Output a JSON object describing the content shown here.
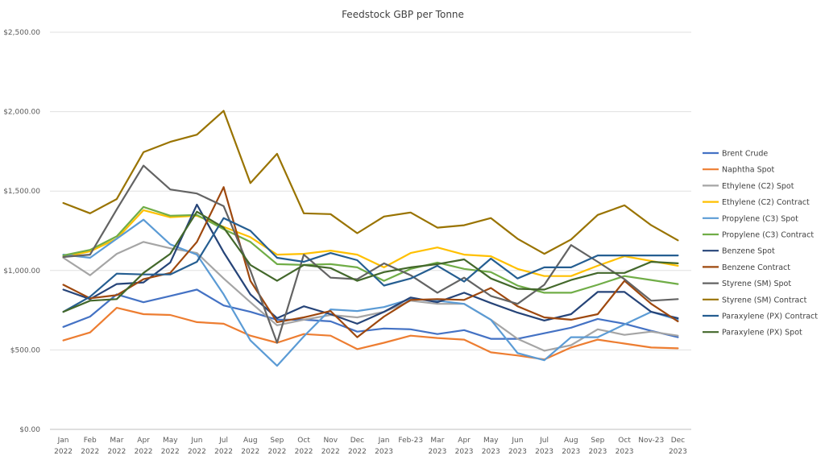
{
  "chart_data": {
    "type": "line",
    "title": "Feedstock GBP per Tonne",
    "xlabel": "",
    "ylabel": "",
    "ylim": [
      0,
      2500
    ],
    "y_ticks": [
      "$0.00",
      "$500.00",
      "$1,000.00",
      "$1,500.00",
      "$2,000.00",
      "$2,500.00"
    ],
    "grid": true,
    "legend_position": "right",
    "x_labels": [
      [
        "Jan",
        "2022"
      ],
      [
        "Feb",
        "2022"
      ],
      [
        "Mar",
        "2022"
      ],
      [
        "Apr",
        "2022"
      ],
      [
        "May",
        "2022"
      ],
      [
        "Jun",
        "2022"
      ],
      [
        "Jul",
        "2022"
      ],
      [
        "Aug",
        "2022"
      ],
      [
        "Sep",
        "2022"
      ],
      [
        "Oct",
        "2022"
      ],
      [
        "Nov",
        "2022"
      ],
      [
        "Dec",
        "2022"
      ],
      [
        "Jan",
        "2023"
      ],
      [
        "Feb-23",
        ""
      ],
      [
        "Mar",
        "2023"
      ],
      [
        "Apr",
        "2023"
      ],
      [
        "May",
        "2023"
      ],
      [
        "Jun",
        "2023"
      ],
      [
        "Jul",
        "2023"
      ],
      [
        "Aug",
        "2023"
      ],
      [
        "Sep",
        "2023"
      ],
      [
        "Oct",
        "2023"
      ],
      [
        "Nov-23",
        ""
      ],
      [
        "Dec",
        "2023"
      ]
    ],
    "series": [
      {
        "name": "Brent Crude",
        "color": "#4472c4",
        "values": [
          645,
          710,
          850,
          800,
          840,
          880,
          780,
          740,
          690,
          690,
          680,
          615,
          635,
          630,
          600,
          625,
          570,
          570,
          605,
          640,
          695,
          665,
          620,
          580
        ]
      },
      {
        "name": "Naphtha Spot",
        "color": "#ed7d31",
        "values": [
          560,
          610,
          765,
          725,
          720,
          675,
          665,
          590,
          545,
          600,
          590,
          505,
          545,
          590,
          575,
          565,
          485,
          465,
          440,
          515,
          565,
          540,
          515,
          510
        ]
      },
      {
        "name": "Ethylene (C2) Spot",
        "color": "#a5a5a5",
        "values": [
          1080,
          970,
          1105,
          1180,
          1140,
          1110,
          950,
          800,
          655,
          690,
          720,
          705,
          740,
          810,
          790,
          790,
          690,
          570,
          495,
          530,
          630,
          595,
          615,
          590
        ]
      },
      {
        "name": "Ethylene (C2) Contract",
        "color": "#ffc000",
        "values": [
          1085,
          1120,
          1200,
          1380,
          1335,
          1345,
          1275,
          1210,
          1100,
          1105,
          1125,
          1100,
          1020,
          1110,
          1145,
          1100,
          1090,
          1010,
          965,
          965,
          1030,
          1090,
          1060,
          1030
        ]
      },
      {
        "name": "Propylene (C3) Spot",
        "color": "#5b9bd5",
        "values": [
          1100,
          1080,
          1200,
          1320,
          1165,
          1100,
          850,
          560,
          400,
          585,
          755,
          745,
          770,
          820,
          810,
          790,
          690,
          480,
          435,
          580,
          580,
          660,
          740,
          690
        ]
      },
      {
        "name": "Propylene (C3) Contract",
        "color": "#70ad47",
        "values": [
          1095,
          1130,
          1215,
          1400,
          1345,
          1350,
          1260,
          1180,
          1040,
          1035,
          1040,
          1020,
          935,
          1010,
          1050,
          1010,
          990,
          905,
          860,
          860,
          910,
          965,
          940,
          915
        ]
      },
      {
        "name": "Benzene Spot",
        "color": "#264478",
        "values": [
          880,
          820,
          915,
          925,
          1050,
          1415,
          1115,
          850,
          700,
          775,
          725,
          665,
          740,
          830,
          800,
          860,
          795,
          735,
          685,
          725,
          865,
          865,
          740,
          700
        ]
      },
      {
        "name": "Benzene Contract",
        "color": "#9e480e",
        "values": [
          910,
          825,
          845,
          945,
          985,
          1180,
          1525,
          935,
          675,
          705,
          745,
          580,
          710,
          815,
          820,
          815,
          890,
          775,
          705,
          690,
          725,
          935,
          790,
          680
        ]
      },
      {
        "name": "Styrene (SM) Spot",
        "color": "#636363",
        "values": [
          1085,
          1100,
          1385,
          1660,
          1510,
          1485,
          1405,
          1000,
          545,
          1100,
          955,
          945,
          1045,
          970,
          860,
          955,
          840,
          790,
          910,
          1160,
          1055,
          945,
          810,
          820
        ]
      },
      {
        "name": "Styrene (SM) Contract",
        "color": "#997300",
        "values": [
          1425,
          1360,
          1450,
          1745,
          1810,
          1855,
          2005,
          1550,
          1735,
          1360,
          1355,
          1235,
          1340,
          1365,
          1270,
          1285,
          1330,
          1200,
          1105,
          1195,
          1350,
          1410,
          1285,
          1190
        ]
      },
      {
        "name": "Paraxylene (PX) Contract",
        "color": "#255e91",
        "values": [
          740,
          835,
          980,
          975,
          975,
          1055,
          1330,
          1250,
          1080,
          1055,
          1110,
          1065,
          905,
          950,
          1030,
          930,
          1075,
          950,
          1020,
          1020,
          1095,
          1095,
          1095,
          1095
        ]
      },
      {
        "name": "Paraxylene (PX) Spot",
        "color": "#43682b",
        "values": [
          740,
          810,
          820,
          985,
          1105,
          1370,
          1270,
          1035,
          935,
          1035,
          1015,
          935,
          990,
          1020,
          1040,
          1070,
          950,
          885,
          880,
          940,
          985,
          985,
          1055,
          1045
        ]
      }
    ]
  }
}
